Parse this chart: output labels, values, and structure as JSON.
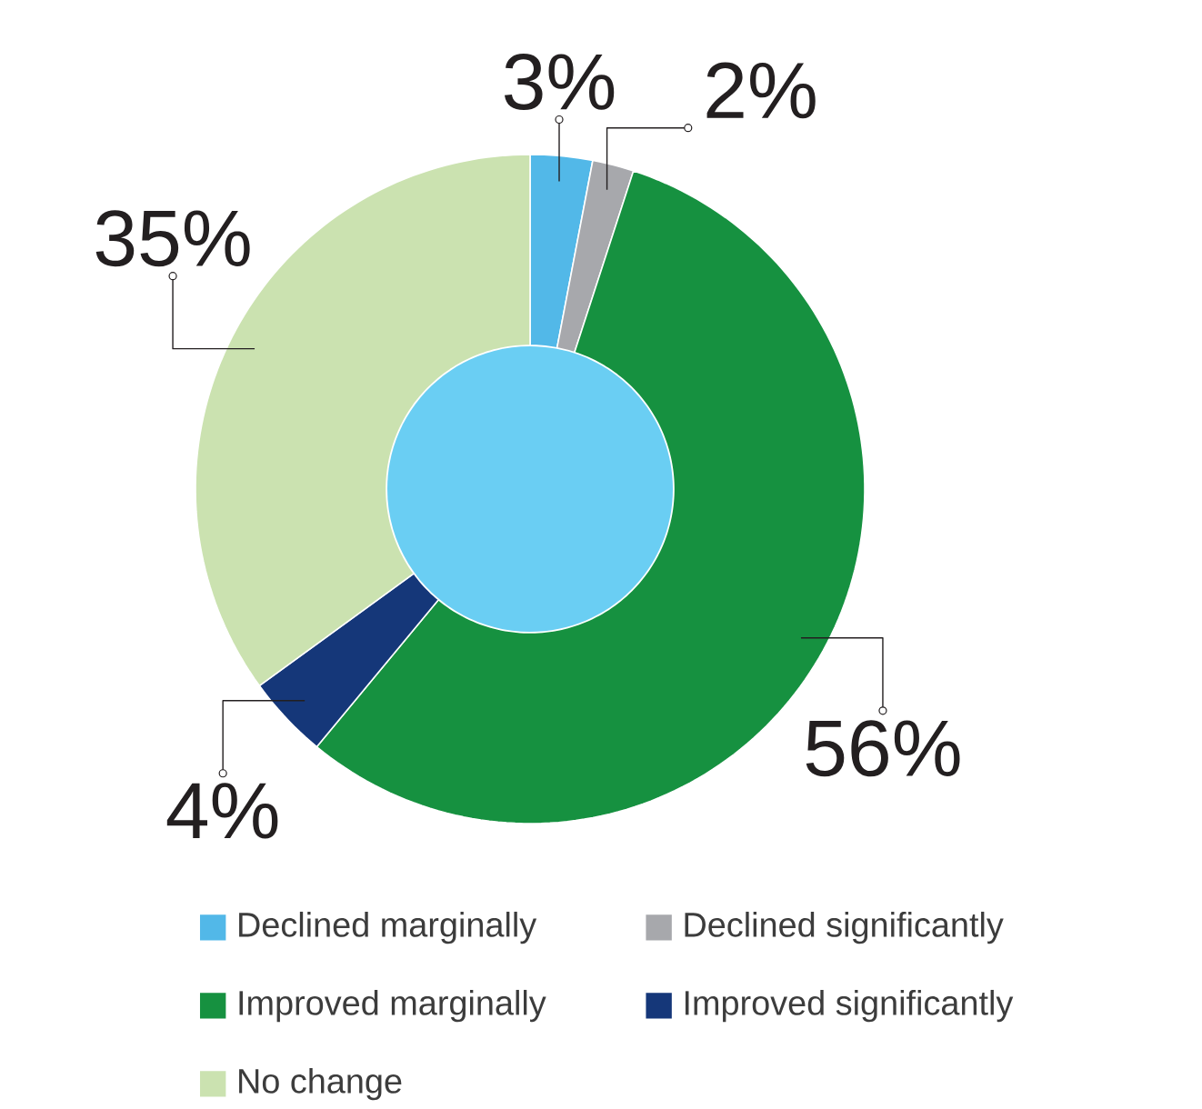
{
  "chart_data": {
    "type": "donut",
    "categories": [
      "Declined marginally",
      "Declined significantly",
      "Improved marginally",
      "Improved significantly",
      "No change"
    ],
    "values": [
      3,
      2,
      56,
      4,
      35
    ],
    "colors": [
      "#52b8e8",
      "#a7a8ac",
      "#169140",
      "#153779",
      "#cbe2b0"
    ],
    "value_labels": [
      "3%",
      "2%",
      "56%",
      "4%",
      "35%"
    ],
    "legend": "bottom"
  }
}
